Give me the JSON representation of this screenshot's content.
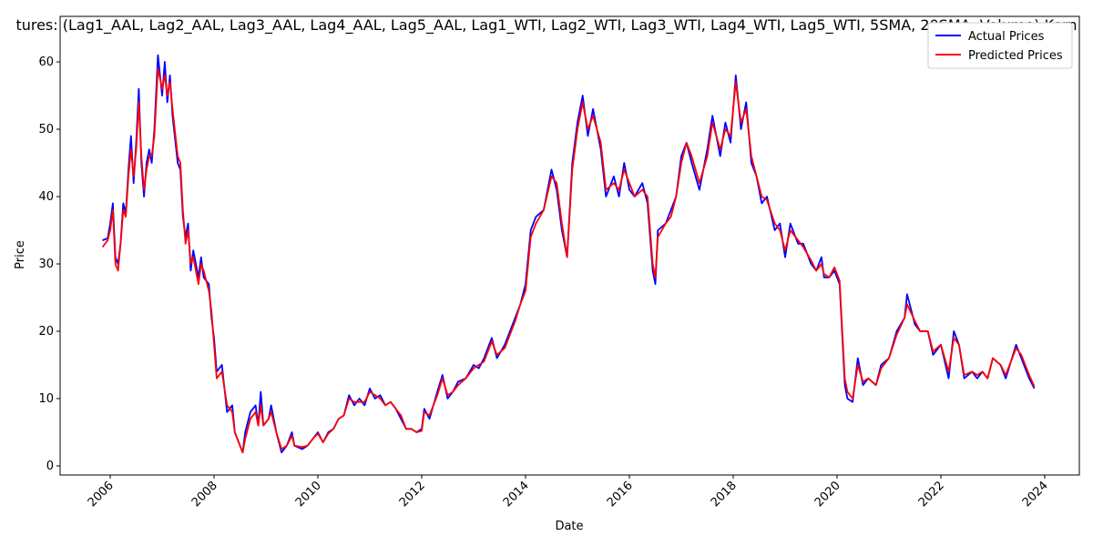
{
  "chart_data": {
    "type": "line",
    "title": "tures: (Lag1_AAL, Lag2_AAL, Lag3_AAL, Lag4_AAL, Lag5_AAL, Lag1_WTI, Lag2_WTI, Lag3_WTI, Lag4_WTI, Lag5_WTI, 5SMA, 20SMA, Volume) Kern",
    "x_label": "Date",
    "y_label": "Price",
    "x": [
      2005.85,
      2005.95,
      2006.0,
      2006.05,
      2006.1,
      2006.15,
      2006.2,
      2006.25,
      2006.3,
      2006.35,
      2006.4,
      2006.45,
      2006.5,
      2006.55,
      2006.6,
      2006.65,
      2006.7,
      2006.75,
      2006.8,
      2006.85,
      2006.92,
      2007.0,
      2007.05,
      2007.1,
      2007.15,
      2007.2,
      2007.3,
      2007.35,
      2007.4,
      2007.45,
      2007.5,
      2007.55,
      2007.6,
      2007.7,
      2007.75,
      2007.8,
      2007.9,
      2007.95,
      2008.0,
      2008.05,
      2008.15,
      2008.25,
      2008.35,
      2008.4,
      2008.5,
      2008.55,
      2008.6,
      2008.7,
      2008.8,
      2008.85,
      2008.9,
      2008.95,
      2009.05,
      2009.1,
      2009.2,
      2009.3,
      2009.4,
      2009.5,
      2009.55,
      2009.7,
      2009.8,
      2009.9,
      2010.0,
      2010.1,
      2010.2,
      2010.3,
      2010.4,
      2010.5,
      2010.6,
      2010.7,
      2010.8,
      2010.9,
      2011.0,
      2011.1,
      2011.2,
      2011.3,
      2011.4,
      2011.5,
      2011.6,
      2011.7,
      2011.8,
      2011.9,
      2012.0,
      2012.05,
      2012.15,
      2012.3,
      2012.4,
      2012.5,
      2012.6,
      2012.7,
      2012.85,
      2013.0,
      2013.1,
      2013.2,
      2013.35,
      2013.45,
      2013.6,
      2013.8,
      2013.9,
      2014.0,
      2014.1,
      2014.2,
      2014.35,
      2014.5,
      2014.6,
      2014.7,
      2014.8,
      2014.9,
      2015.0,
      2015.1,
      2015.2,
      2015.3,
      2015.45,
      2015.55,
      2015.7,
      2015.8,
      2015.9,
      2016.0,
      2016.1,
      2016.25,
      2016.35,
      2016.45,
      2016.5,
      2016.55,
      2016.7,
      2016.8,
      2016.9,
      2017.0,
      2017.1,
      2017.2,
      2017.35,
      2017.5,
      2017.6,
      2017.75,
      2017.85,
      2017.95,
      2018.05,
      2018.15,
      2018.25,
      2018.35,
      2018.45,
      2018.55,
      2018.65,
      2018.8,
      2018.9,
      2019.0,
      2019.1,
      2019.25,
      2019.35,
      2019.5,
      2019.6,
      2019.7,
      2019.75,
      2019.85,
      2019.95,
      2020.05,
      2020.15,
      2020.2,
      2020.3,
      2020.4,
      2020.5,
      2020.6,
      2020.75,
      2020.85,
      2021.0,
      2021.15,
      2021.3,
      2021.35,
      2021.5,
      2021.6,
      2021.75,
      2021.85,
      2022.0,
      2022.15,
      2022.25,
      2022.35,
      2022.45,
      2022.6,
      2022.7,
      2022.8,
      2022.9,
      2023.0,
      2023.15,
      2023.25,
      2023.45,
      2023.55,
      2023.7,
      2023.8
    ],
    "series": [
      {
        "name": "Actual Prices",
        "color": "#0000ff",
        "values": [
          33.5,
          33.8,
          36,
          39,
          31,
          30,
          33,
          39,
          37.5,
          44,
          49,
          42,
          48,
          56,
          45,
          40,
          45,
          47,
          45,
          50,
          61,
          55,
          60,
          54,
          58,
          52,
          45,
          44,
          37,
          34,
          36,
          29,
          32,
          28,
          31,
          28,
          27,
          22,
          19,
          14,
          15,
          8,
          9,
          5,
          3,
          2,
          5,
          8,
          9,
          6,
          11,
          6,
          7,
          9,
          5,
          2,
          3,
          5,
          3,
          2.5,
          3,
          4,
          5,
          3.5,
          5,
          5.5,
          7,
          7.5,
          10.5,
          9,
          10,
          9,
          11.5,
          10,
          10.5,
          9,
          9.5,
          8.5,
          7,
          5.5,
          5.5,
          5,
          5.5,
          8.5,
          7,
          11,
          13.5,
          10,
          11,
          12.5,
          13,
          15,
          14.5,
          16,
          19,
          16,
          18,
          22,
          24,
          27,
          35,
          37,
          38,
          44,
          41,
          35,
          31,
          45,
          51,
          55,
          49,
          53,
          47,
          40,
          43,
          40,
          45,
          41,
          40,
          42,
          39,
          29,
          27,
          35,
          36,
          38,
          40,
          46,
          48,
          45,
          41,
          47,
          52,
          46,
          51,
          48,
          58,
          50,
          54,
          45,
          43,
          39,
          40,
          35,
          36,
          31,
          36,
          33,
          33,
          30,
          29,
          31,
          28,
          28,
          29,
          27,
          12,
          10,
          9.5,
          16,
          12,
          13,
          12,
          15,
          16,
          20,
          22,
          25.5,
          21,
          20,
          20,
          16.5,
          18,
          13,
          20,
          18,
          13,
          14,
          13,
          14,
          13,
          16,
          15,
          13,
          18,
          16,
          13,
          11.5
        ]
      },
      {
        "name": "Predicted Prices",
        "color": "#ff0000",
        "values": [
          32.5,
          33.5,
          35,
          38,
          30,
          29,
          33,
          38,
          37,
          43,
          47,
          43,
          47,
          54,
          46,
          41,
          44,
          46,
          46,
          49,
          59,
          56,
          58,
          55,
          57,
          53,
          46,
          45,
          38,
          33,
          35,
          30,
          31,
          27,
          30,
          29,
          26,
          23,
          18,
          13,
          14,
          9,
          8,
          5,
          3,
          2,
          4,
          7,
          8,
          6,
          9,
          6,
          7,
          8,
          5,
          2.5,
          3,
          4.5,
          3,
          2.8,
          3,
          4,
          4.8,
          3.5,
          4.8,
          5.5,
          7,
          7.5,
          10,
          9.5,
          9.5,
          9.5,
          11,
          10.5,
          10,
          9,
          9.5,
          8.5,
          7.5,
          5.5,
          5.5,
          5,
          5.2,
          8,
          7.5,
          10.5,
          13,
          10.5,
          11,
          12,
          13,
          14.5,
          15,
          15.5,
          18.5,
          16.5,
          17.5,
          21.5,
          24,
          26,
          34,
          36,
          38,
          43,
          42,
          36,
          31,
          44,
          50,
          54,
          50,
          52,
          48,
          41,
          42,
          41,
          44,
          42,
          40,
          41,
          40,
          30,
          28,
          34,
          36,
          37,
          40,
          45,
          48,
          46,
          42,
          46,
          51,
          47,
          50,
          49,
          57,
          51,
          53,
          46,
          43,
          40,
          39.5,
          36,
          35,
          32,
          35,
          33.5,
          32.5,
          30.5,
          29,
          30,
          28.5,
          28,
          29.5,
          27.5,
          13,
          11,
          10,
          15,
          12.5,
          13,
          12,
          14.5,
          16,
          19.5,
          22,
          24,
          21.5,
          20,
          20,
          17,
          18,
          14,
          19,
          18,
          13.5,
          14,
          13.5,
          14,
          13,
          16,
          15,
          13.5,
          17.5,
          16.5,
          13.5,
          11.8
        ]
      }
    ],
    "xlim": [
      2005.035,
      2024.667
    ],
    "xticks": [
      2006,
      2008,
      2010,
      2012,
      2014,
      2016,
      2018,
      2020,
      2022,
      2024
    ],
    "ylim": [
      -1.35,
      66.76
    ],
    "yticks": [
      0,
      10,
      20,
      30,
      40,
      50,
      60
    ],
    "legend": "upper right"
  }
}
